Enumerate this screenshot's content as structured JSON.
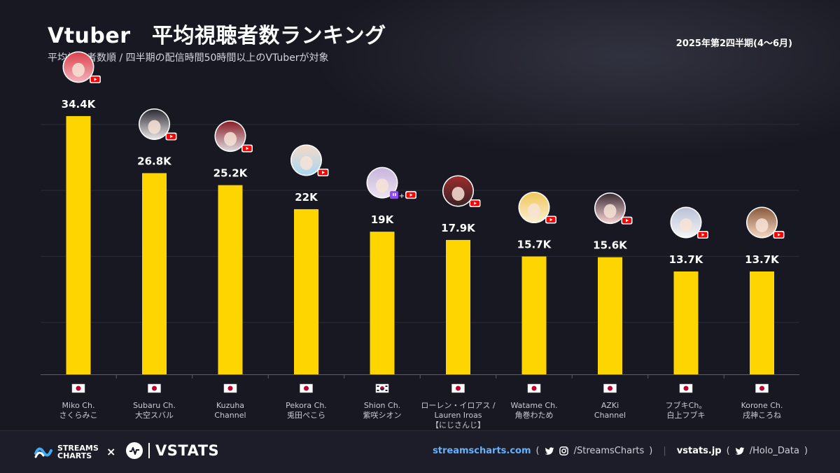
{
  "header": {
    "title": "Vtuber　平均視聴者数ランキング",
    "subtitle": "平均視聴者数順 / 四半期の配信時間50時間以上のVTuberが対象",
    "period": "2025年第2四半期(4〜6月)"
  },
  "colors": {
    "bar": "#FFD500",
    "background": "#171821",
    "grid": "#2b2c38",
    "youtube": "#FF0000",
    "twitch": "#9146FF"
  },
  "chart_data": {
    "type": "bar",
    "title": "Vtuber　平均視聴者数ランキング",
    "subtitle": "平均視聴者数順 / 四半期の配信時間50時間以上のVTuberが対象",
    "categories": [
      "Miko Ch. さくらみこ",
      "Subaru Ch. 大空スバル",
      "Kuzuha Channel",
      "Pekora Ch. 兎田ぺこら",
      "Shion Ch. 紫咲シオン",
      "ローレン・イロアス / Lauren Iroas 【にじさんじ】",
      "Watame Ch. 角巻わため",
      "AZKi Channel",
      "フブキCh。白上フブキ",
      "Korone Ch. 戌神ころね"
    ],
    "values": [
      34400,
      26800,
      25200,
      22000,
      19000,
      17900,
      15700,
      15600,
      13700,
      13700
    ],
    "value_labels": [
      "34.4K",
      "26.8K",
      "25.2K",
      "22K",
      "19K",
      "17.9K",
      "15.7K",
      "15.6K",
      "13.7K",
      "13.7K"
    ],
    "ylim": [
      0,
      37000
    ],
    "grid": true,
    "legend": "none",
    "xlabel": "",
    "ylabel": ""
  },
  "channels": [
    {
      "name_lines": [
        "Miko Ch.",
        "さくらみこ"
      ],
      "flag": "JP",
      "platforms": [
        "youtube"
      ],
      "avatar_colors": [
        "#f3b2bb",
        "#d9434f"
      ]
    },
    {
      "name_lines": [
        "Subaru Ch.",
        "大空スバル"
      ],
      "flag": "JP",
      "platforms": [
        "youtube"
      ],
      "avatar_colors": [
        "#e8e4e4",
        "#2a2a33"
      ]
    },
    {
      "name_lines": [
        "Kuzuha",
        "Channel"
      ],
      "flag": "JP",
      "platforms": [
        "youtube"
      ],
      "avatar_colors": [
        "#d9d9de",
        "#8a1c25"
      ]
    },
    {
      "name_lines": [
        "Pekora Ch.",
        "兎田ぺこら"
      ],
      "flag": "JP",
      "platforms": [
        "youtube"
      ],
      "avatar_colors": [
        "#a9d8f2",
        "#f4d9c8"
      ]
    },
    {
      "name_lines": [
        "Shion Ch.",
        "紫咲シオン"
      ],
      "flag": "KR",
      "platforms": [
        "twitch",
        "youtube"
      ],
      "avatar_colors": [
        "#e9e2ee",
        "#c8b5dc"
      ]
    },
    {
      "name_lines": [
        "ローレン・イロアス /",
        "Lauren Iroas",
        "【にじさんじ】"
      ],
      "flag": "JP",
      "platforms": [
        "youtube"
      ],
      "avatar_colors": [
        "#3a2326",
        "#9c2c2c"
      ]
    },
    {
      "name_lines": [
        "Watame Ch.",
        "角巻わため"
      ],
      "flag": "JP",
      "platforms": [
        "youtube"
      ],
      "avatar_colors": [
        "#fbeed2",
        "#f0c75a"
      ]
    },
    {
      "name_lines": [
        "AZKi",
        "Channel"
      ],
      "flag": "JP",
      "platforms": [
        "youtube"
      ],
      "avatar_colors": [
        "#f6d2d4",
        "#3b2a36"
      ]
    },
    {
      "name_lines": [
        "フブキCh。",
        "白上フブキ"
      ],
      "flag": "JP",
      "platforms": [
        "youtube"
      ],
      "avatar_colors": [
        "#f4f4f8",
        "#b9c2d6"
      ]
    },
    {
      "name_lines": [
        "Korone Ch.",
        "戌神ころね"
      ],
      "flag": "JP",
      "platforms": [
        "youtube"
      ],
      "avatar_colors": [
        "#f3d7c1",
        "#8a5a3c"
      ]
    }
  ],
  "footer": {
    "streams_brand": "STREAMS\nCHARTS",
    "times": "×",
    "vstats_brand": "VSTATS",
    "site_url": "streamscharts.com",
    "paren_open": "(",
    "social_handle": "/StreamsCharts",
    "paren_close": ")",
    "divider": "|",
    "vstats_url": "vstats.jp",
    "vstats_paren_open": "(",
    "vstats_handle": "/Holo_Data",
    "vstats_paren_close": ")"
  }
}
